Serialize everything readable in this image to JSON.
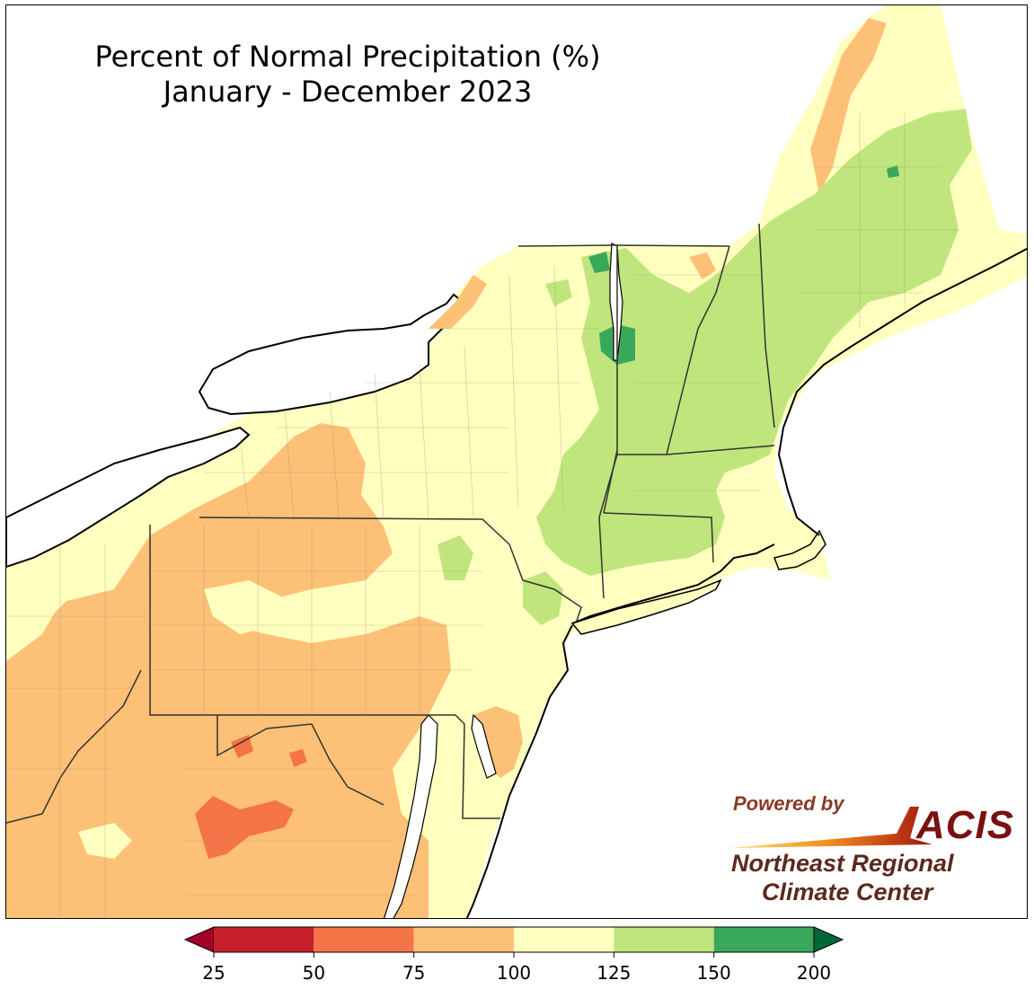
{
  "title": {
    "line1": "Percent of Normal Precipitation (%)",
    "line2": "January - December 2023"
  },
  "logo": {
    "powered_by": "Powered by",
    "acis": "ACIS",
    "org_line1": "Northeast Regional",
    "org_line2": "Climate Center"
  },
  "legend": {
    "bins": [
      {
        "from": 25,
        "to": 50,
        "color": "#c8202a"
      },
      {
        "from": 50,
        "to": 75,
        "color": "#f47448"
      },
      {
        "from": 75,
        "to": 100,
        "color": "#fdc077"
      },
      {
        "from": 100,
        "to": 125,
        "color": "#ffffbf"
      },
      {
        "from": 125,
        "to": 150,
        "color": "#c0e57d"
      },
      {
        "from": 150,
        "to": 200,
        "color": "#3aa85a"
      }
    ],
    "under_color": "#a50026",
    "over_color": "#006837",
    "ticks": [
      "25",
      "50",
      "75",
      "100",
      "125",
      "150",
      "200"
    ]
  },
  "colors": {
    "very_dry": "#c8202a",
    "dry": "#f47448",
    "below_normal": "#fdc077",
    "near_normal": "#ffffbf",
    "wet": "#c0e57d",
    "very_wet": "#3aa85a",
    "water": "#ffffff"
  }
}
